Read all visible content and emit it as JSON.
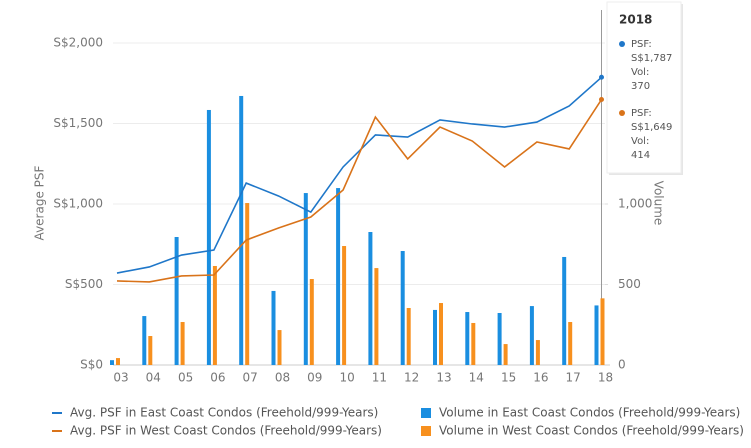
{
  "chart_data": {
    "type": "combo",
    "categories": [
      "03",
      "04",
      "05",
      "06",
      "07",
      "08",
      "09",
      "10",
      "11",
      "12",
      "13",
      "14",
      "15",
      "16",
      "17",
      "18"
    ],
    "y_label": "Average PSF",
    "y2_label": "Volume",
    "ylim": [
      0,
      2000
    ],
    "yticks": [
      {
        "value": 0,
        "label": "S$0"
      },
      {
        "value": 500,
        "label": "S$500"
      },
      {
        "value": 1000,
        "label": "S$1,000"
      },
      {
        "value": 1500,
        "label": "S$1,500"
      },
      {
        "value": 2000,
        "label": "S$2,000"
      }
    ],
    "y2lim": [
      0,
      2000
    ],
    "y2ticks": [
      0,
      500,
      {
        "value": 1000,
        "label": "1,000"
      }
    ],
    "grid": true,
    "series": [
      {
        "name": "Volume in East Coast Condos (Freehold/999-Years)",
        "type": "bar",
        "axis": "y2",
        "color": "#1a8ee0",
        "values": [
          30,
          304,
          795,
          1584,
          1671,
          460,
          1068,
          1099,
          826,
          708,
          342,
          329,
          323,
          366,
          671,
          370
        ]
      },
      {
        "name": "Volume in West Coast Condos (Freehold/999-Years)",
        "type": "bar",
        "axis": "y2",
        "color": "#f7901e",
        "values": [
          43,
          180,
          267,
          615,
          1006,
          217,
          534,
          739,
          602,
          354,
          385,
          261,
          130,
          155,
          267,
          414
        ]
      },
      {
        "name": "Avg. PSF in East Coast Condos (Freehold/999-Years)",
        "type": "line",
        "color": "#1f77c9",
        "values": [
          571,
          609,
          683,
          714,
          1130,
          1050,
          950,
          1230,
          1429,
          1416,
          1522,
          1497,
          1478,
          1509,
          1609,
          1787
        ]
      },
      {
        "name": "Avg. PSF in West Coast Condos (Freehold/999-Years)",
        "type": "line",
        "color": "#d9731a",
        "values": [
          522,
          516,
          553,
          559,
          776,
          851,
          919,
          1087,
          1540,
          1280,
          1478,
          1391,
          1230,
          1385,
          1342,
          1649
        ]
      }
    ],
    "tooltip": {
      "title": "2018",
      "items": [
        {
          "psf_label": "PSF:",
          "psf": "S$1,787",
          "vol_label": "Vol:",
          "vol": "370"
        },
        {
          "psf_label": "PSF:",
          "psf": "S$1,649",
          "vol_label": "Vol:",
          "vol": "414"
        }
      ]
    }
  }
}
